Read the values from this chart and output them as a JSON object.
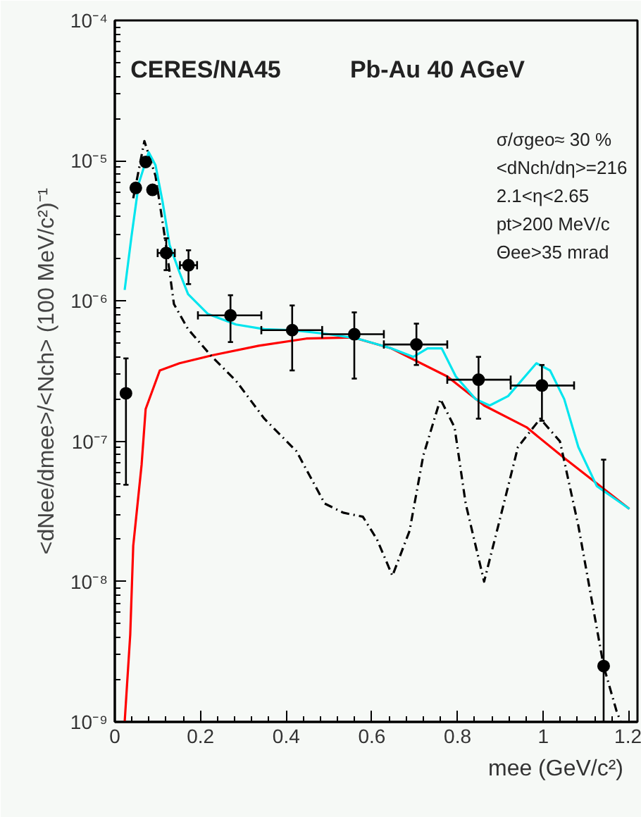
{
  "chart_data": {
    "type": "line",
    "xlabel": "mee (GeV/c²)",
    "ylabel": "<dNee/dmee>/<Nch> (100 MeV/c²)⁻¹",
    "log": "y",
    "xlim": [
      0,
      1.22
    ],
    "ylim": [
      1e-09,
      0.0001
    ],
    "xticks": [
      0,
      {
        "value": 0.2,
        "label": "0.2"
      },
      {
        "value": 0.4,
        "label": "0.4"
      },
      {
        "value": 0.6,
        "label": "0.6"
      },
      {
        "value": 0.8,
        "label": "0.8"
      },
      1,
      {
        "value": 1.2,
        "label": "1.2"
      }
    ],
    "yticks": [
      {
        "value": 1e-09,
        "label": "10⁻⁹"
      },
      {
        "value": 1e-08,
        "label": "10⁻⁸"
      },
      {
        "value": 1e-07,
        "label": "10⁻⁷"
      },
      {
        "value": 1e-06,
        "label": "10⁻⁶"
      },
      {
        "value": 1e-05,
        "label": "10⁻⁵"
      },
      {
        "value": 0.0001,
        "label": "10⁻⁴"
      }
    ],
    "annotations": [
      "CERES/NA45",
      "Pb-Au 40 AGeV",
      "σ/σgeo≈ 30 %",
      "<dNch/dη>=216",
      "2.1<η<2.65",
      "pt>200 MeV/c",
      "Θee>35 mrad"
    ],
    "series": [
      {
        "type": "line",
        "color": "#ff0000",
        "line_style": "solid",
        "x": [
          0.023,
          0.036,
          0.043,
          0.0625,
          0.072,
          0.105,
          0.151,
          0.227,
          0.336,
          0.447,
          0.556,
          0.645,
          0.776,
          0.862,
          0.961,
          1.049,
          1.201
        ],
        "values": [
          1e-09,
          4.2e-09,
          1.8e-08,
          6.8e-08,
          1.7e-07,
          3.2e-07,
          3.6e-07,
          4.1e-07,
          4.8e-07,
          5.4e-07,
          5.5e-07,
          4.6e-07,
          2.9e-07,
          1.8e-07,
          1.26e-07,
          7.6e-08,
          3.3e-08
        ]
      },
      {
        "type": "line",
        "color": "#000000",
        "line_style": "dashed",
        "x": [
          0.043,
          0.069,
          0.095,
          0.118,
          0.138,
          0.171,
          0.227,
          0.283,
          0.349,
          0.424,
          0.49,
          0.533,
          0.579,
          0.612,
          0.648,
          0.688,
          0.72,
          0.76,
          0.793,
          0.819,
          0.862,
          0.895,
          0.941,
          0.993,
          1.039,
          1.082,
          1.141,
          1.171,
          1.181
        ],
        "values": [
          5.4e-06,
          1.38e-05,
          7.8e-06,
          2.7e-06,
          9.5e-07,
          6.3e-07,
          4e-07,
          2.7e-07,
          1.45e-07,
          8.5e-08,
          3.6e-08,
          3.1e-08,
          2.9e-08,
          2e-08,
          1.1e-08,
          2.3e-08,
          7.9e-08,
          2e-07,
          1.26e-07,
          3.6e-08,
          1e-08,
          2.5e-08,
          9.1e-08,
          1.45e-07,
          1e-07,
          2.5e-08,
          2.5e-09,
          1.2e-09,
          1e-09
        ]
      },
      {
        "type": "line",
        "color": "#00e5ee",
        "line_style": "solid",
        "x": [
          0.023,
          0.039,
          0.056,
          0.079,
          0.095,
          0.112,
          0.128,
          0.151,
          0.171,
          0.217,
          0.283,
          0.349,
          0.414,
          0.5,
          0.566,
          0.645,
          0.697,
          0.73,
          0.763,
          0.796,
          0.842,
          0.875,
          0.918,
          0.984,
          1.016,
          1.049,
          1.082,
          1.125,
          1.201
        ],
        "values": [
          1.2e-06,
          2.9e-06,
          6.9e-06,
          1.15e-05,
          9.3e-06,
          5e-06,
          2.5e-06,
          1.6e-06,
          1.12e-06,
          8.1e-07,
          6.8e-07,
          6.3e-07,
          6.2e-07,
          5.8e-07,
          5.4e-07,
          4.6e-07,
          4e-07,
          4.6e-07,
          4.6e-07,
          2.9e-07,
          2e-07,
          1.8e-07,
          2.1e-07,
          3.6e-07,
          3.2e-07,
          2e-07,
          9.1e-08,
          4.8e-08,
          3.3e-08
        ]
      },
      {
        "type": "scatter",
        "color": "#000000",
        "marker": "circle",
        "x": [
          0.026,
          0.049,
          0.072,
          0.088,
          0.12,
          0.172,
          0.27,
          0.414,
          0.559,
          0.704,
          0.849,
          0.997,
          1.141
        ],
        "values": [
          2.2e-07,
          6.4e-06,
          9.8e-06,
          6.2e-06,
          2.2e-06,
          1.8e-06,
          7.9e-07,
          6.2e-07,
          5.8e-07,
          4.9e-07,
          2.75e-07,
          2.5e-07,
          2.5e-09
        ],
        "errors": [
          [
            4.9e-08,
            3.9e-07
          ],
          null,
          null,
          null,
          [
            1.66e-06,
            2.8e-06
          ],
          [
            1.32e-06,
            2.3e-06
          ],
          [
            5.1e-07,
            1.1e-06
          ],
          [
            3.2e-07,
            9.3e-07
          ],
          [
            2.8e-07,
            8.3e-07
          ],
          [
            3.5e-07,
            6.9e-07
          ],
          [
            1.45e-07,
            4e-07
          ],
          [
            1.4e-07,
            3.5e-07
          ],
          [
            1e-09,
            7.4e-08
          ]
        ],
        "xerrors": [
          null,
          null,
          null,
          null,
          [
            0.1,
            0.14
          ],
          [
            0.152,
            0.192
          ],
          [
            0.194,
            0.342
          ],
          [
            0.342,
            0.484
          ],
          [
            0.484,
            0.628
          ],
          [
            0.628,
            0.776
          ],
          [
            0.776,
            0.924
          ],
          [
            0.924,
            1.072
          ],
          null
        ]
      }
    ]
  }
}
